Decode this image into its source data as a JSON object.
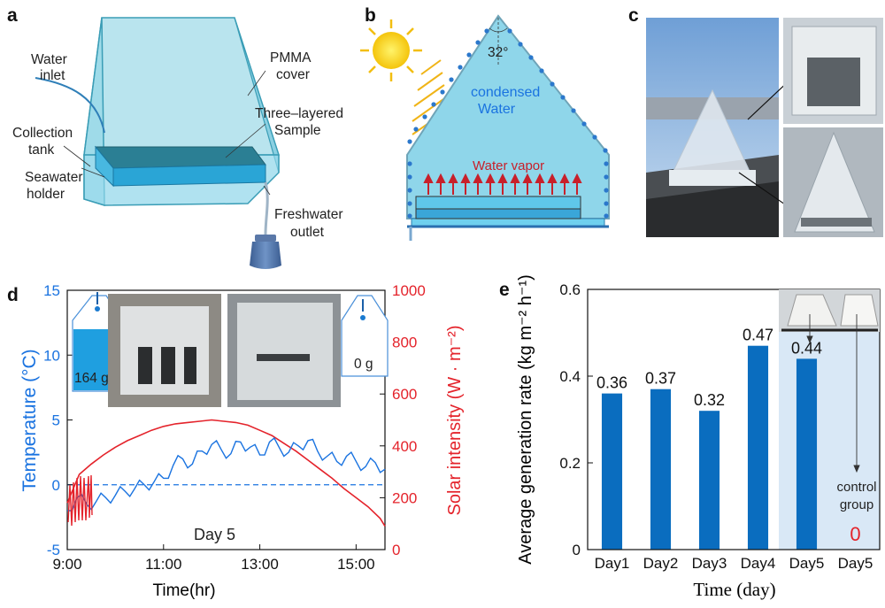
{
  "panel_a": {
    "label": "a",
    "callouts": {
      "water_inlet": [
        "Water",
        "inlet"
      ],
      "pmma_cover": [
        "PMMA",
        "cover"
      ],
      "collection_tank": [
        "Collection",
        "tank"
      ],
      "three_layered_sample": [
        "Three–layered",
        "Sample"
      ],
      "seawater_holder": [
        "Seawater",
        "holder"
      ],
      "freshwater_outlet": [
        "Freshwater",
        "outlet"
      ]
    }
  },
  "panel_b": {
    "label": "b",
    "angle": "32°",
    "condensed_water": [
      "condensed",
      "Water"
    ],
    "water_vapor": "Water vapor"
  },
  "panel_c": {
    "label": "c"
  },
  "panel_d": {
    "label": "d",
    "inset_left_mass": "164 g",
    "inset_right_mass": "0 g",
    "day_label": "Day 5"
  },
  "panel_e": {
    "label": "e",
    "inset_note": [
      "control",
      "group"
    ]
  },
  "colors": {
    "blue": "#1a73e0",
    "red": "#e4232b",
    "bar": "#0a6dbf",
    "cyan_fill": "#8fd6ea",
    "shade": "#d9e8f6"
  },
  "chart_data": [
    {
      "type": "line",
      "panel": "d",
      "xlabel": "Time(hr)",
      "ylabel_left": "Temperature (°C)",
      "ylabel_right": "Solar intensity (W · m⁻²)",
      "x_ticks": [
        "9:00",
        "11:00",
        "13:00",
        "15:00"
      ],
      "x_range_hours": [
        9.0,
        15.6
      ],
      "ylim_left": [
        -5,
        15
      ],
      "yticks_left": [
        -5,
        0,
        5,
        10,
        15
      ],
      "ylim_right": [
        0,
        1000
      ],
      "yticks_right": [
        0,
        200,
        400,
        600,
        800,
        1000
      ],
      "reference_line": {
        "axis": "left",
        "y": 0,
        "style": "dashed"
      },
      "series": [
        {
          "axis": "left",
          "x": [
            9.0,
            9.2,
            9.4,
            9.6,
            9.8,
            10.0,
            10.2,
            10.4,
            10.6,
            10.8,
            11.0,
            11.2,
            11.4,
            11.6,
            11.8,
            12.0,
            12.2,
            12.4,
            12.6,
            12.8,
            13.0,
            13.2,
            13.4,
            13.6,
            13.8,
            14.0,
            14.2,
            14.4,
            14.6,
            14.8,
            15.0,
            15.2,
            15.4,
            15.6
          ],
          "y": [
            -2.0,
            -1.0,
            -1.5,
            -1.3,
            -1.0,
            -0.8,
            -0.5,
            -0.3,
            0.0,
            0.2,
            0.5,
            1.5,
            2.0,
            1.6,
            2.6,
            3.1,
            2.7,
            2.4,
            3.3,
            2.9,
            2.3,
            3.3,
            2.9,
            2.5,
            3.0,
            3.4,
            2.6,
            2.2,
            1.8,
            2.2,
            1.8,
            1.4,
            1.7,
            1.2
          ]
        },
        {
          "axis": "right",
          "x": [
            9.0,
            9.25,
            9.5,
            9.75,
            10.0,
            10.25,
            10.5,
            10.75,
            11.0,
            11.25,
            11.5,
            11.75,
            12.0,
            12.25,
            12.5,
            12.75,
            13.0,
            13.25,
            13.5,
            13.75,
            14.0,
            14.25,
            14.5,
            14.75,
            15.0,
            15.25,
            15.5,
            15.6
          ],
          "y": [
            180,
            290,
            330,
            365,
            395,
            420,
            440,
            460,
            475,
            485,
            490,
            495,
            500,
            495,
            490,
            480,
            460,
            440,
            410,
            380,
            345,
            310,
            275,
            235,
            200,
            165,
            120,
            90
          ]
        }
      ]
    },
    {
      "type": "bar",
      "panel": "e",
      "xlabel": "Time (day)",
      "ylabel": "Average generation rate (kg m⁻² h⁻¹)",
      "categories": [
        "Day1",
        "Day2",
        "Day3",
        "Day4",
        "Day5",
        "Day5"
      ],
      "values": [
        0.36,
        0.37,
        0.32,
        0.47,
        0.44,
        0
      ],
      "labels": [
        "0.36",
        "0.37",
        "0.32",
        "0.47",
        "0.44",
        "0"
      ],
      "ylim": [
        0,
        0.6
      ],
      "yticks": [
        "0",
        "0.2",
        "0.4",
        "0.6"
      ]
    }
  ]
}
